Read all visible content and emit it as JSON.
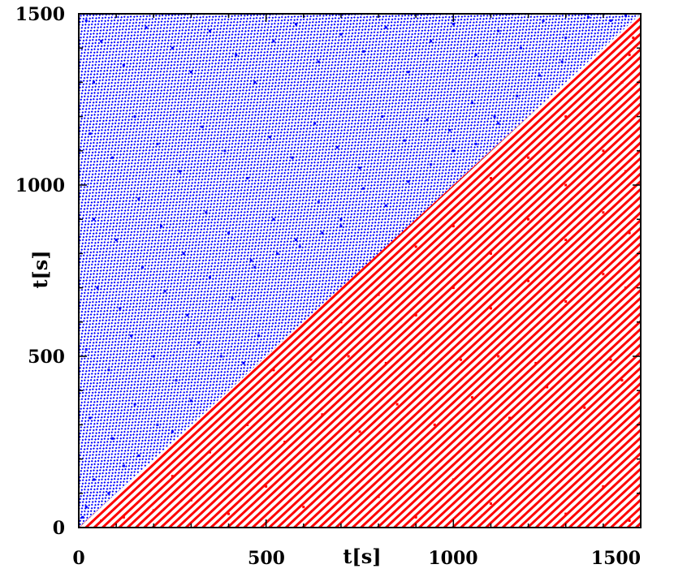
{
  "chart_data": {
    "type": "scatter",
    "title": "",
    "xlabel": "t[s]",
    "ylabel": "t[s]",
    "xlim": [
      0,
      1500
    ],
    "ylim": [
      0,
      1500
    ],
    "x_ticks": [
      "0",
      "500",
      "1000",
      "1500"
    ],
    "y_ticks": [
      "0",
      "500",
      "1000",
      "1500"
    ],
    "grid": false,
    "legend": "none",
    "series": [
      {
        "color": "#0000ff",
        "region": "upper-left triangle (y > x)",
        "points": [
          [
            20,
            1480
          ],
          [
            60,
            1420
          ],
          [
            40,
            1300
          ],
          [
            120,
            1350
          ],
          [
            180,
            1460
          ],
          [
            250,
            1400
          ],
          [
            300,
            1330
          ],
          [
            350,
            1450
          ],
          [
            420,
            1380
          ],
          [
            470,
            1300
          ],
          [
            520,
            1420
          ],
          [
            580,
            1470
          ],
          [
            640,
            1360
          ],
          [
            700,
            1440
          ],
          [
            760,
            1390
          ],
          [
            820,
            1460
          ],
          [
            880,
            1330
          ],
          [
            940,
            1420
          ],
          [
            1000,
            1470
          ],
          [
            1060,
            1380
          ],
          [
            1120,
            1450
          ],
          [
            1180,
            1400
          ],
          [
            1240,
            1480
          ],
          [
            1300,
            1430
          ],
          [
            1360,
            1490
          ],
          [
            1420,
            1480
          ],
          [
            1460,
            1495
          ],
          [
            30,
            1150
          ],
          [
            90,
            1080
          ],
          [
            150,
            1200
          ],
          [
            210,
            1120
          ],
          [
            270,
            1040
          ],
          [
            330,
            1170
          ],
          [
            390,
            1100
          ],
          [
            450,
            1020
          ],
          [
            510,
            1140
          ],
          [
            570,
            1080
          ],
          [
            630,
            1180
          ],
          [
            690,
            1110
          ],
          [
            750,
            1050
          ],
          [
            810,
            1200
          ],
          [
            870,
            1130
          ],
          [
            930,
            1190
          ],
          [
            990,
            1160
          ],
          [
            1050,
            1240
          ],
          [
            1110,
            1200
          ],
          [
            1170,
            1260
          ],
          [
            1230,
            1320
          ],
          [
            1290,
            1360
          ],
          [
            40,
            900
          ],
          [
            100,
            840
          ],
          [
            160,
            960
          ],
          [
            220,
            880
          ],
          [
            280,
            800
          ],
          [
            340,
            920
          ],
          [
            400,
            860
          ],
          [
            460,
            780
          ],
          [
            520,
            900
          ],
          [
            580,
            840
          ],
          [
            640,
            950
          ],
          [
            700,
            880
          ],
          [
            760,
            990
          ],
          [
            820,
            940
          ],
          [
            880,
            1010
          ],
          [
            940,
            1060
          ],
          [
            1000,
            1100
          ],
          [
            1060,
            1120
          ],
          [
            1120,
            1180
          ],
          [
            50,
            700
          ],
          [
            110,
            640
          ],
          [
            170,
            760
          ],
          [
            230,
            690
          ],
          [
            290,
            620
          ],
          [
            350,
            730
          ],
          [
            410,
            670
          ],
          [
            470,
            760
          ],
          [
            530,
            800
          ],
          [
            590,
            820
          ],
          [
            650,
            860
          ],
          [
            700,
            900
          ],
          [
            20,
            520
          ],
          [
            80,
            460
          ],
          [
            140,
            560
          ],
          [
            200,
            500
          ],
          [
            260,
            430
          ],
          [
            320,
            540
          ],
          [
            380,
            500
          ],
          [
            440,
            480
          ],
          [
            480,
            560
          ],
          [
            30,
            320
          ],
          [
            90,
            260
          ],
          [
            150,
            360
          ],
          [
            210,
            300
          ],
          [
            250,
            280
          ],
          [
            300,
            370
          ],
          [
            40,
            140
          ],
          [
            80,
            100
          ],
          [
            120,
            180
          ],
          [
            160,
            210
          ],
          [
            20,
            60
          ],
          [
            10,
            30
          ]
        ]
      },
      {
        "color": "#ff0000",
        "region": "lower-right triangle (y < x)",
        "points": [
          [
            60,
            20
          ],
          [
            120,
            30
          ],
          [
            200,
            50
          ],
          [
            300,
            80
          ],
          [
            400,
            40
          ],
          [
            500,
            120
          ],
          [
            600,
            60
          ],
          [
            700,
            150
          ],
          [
            800,
            90
          ],
          [
            900,
            30
          ],
          [
            1000,
            140
          ],
          [
            1100,
            70
          ],
          [
            1200,
            160
          ],
          [
            1300,
            40
          ],
          [
            1400,
            120
          ],
          [
            1470,
            20
          ],
          [
            250,
            150
          ],
          [
            350,
            220
          ],
          [
            450,
            300
          ],
          [
            550,
            250
          ],
          [
            650,
            330
          ],
          [
            750,
            280
          ],
          [
            850,
            360
          ],
          [
            950,
            300
          ],
          [
            1050,
            380
          ],
          [
            1150,
            320
          ],
          [
            1250,
            410
          ],
          [
            1350,
            350
          ],
          [
            1450,
            430
          ],
          [
            520,
            460
          ],
          [
            620,
            490
          ],
          [
            720,
            500
          ],
          [
            820,
            480
          ],
          [
            920,
            510
          ],
          [
            1020,
            490
          ],
          [
            1120,
            500
          ],
          [
            1220,
            480
          ],
          [
            1320,
            510
          ],
          [
            1420,
            490
          ],
          [
            700,
            600
          ],
          [
            800,
            680
          ],
          [
            900,
            620
          ],
          [
            1000,
            700
          ],
          [
            1100,
            640
          ],
          [
            1200,
            720
          ],
          [
            1300,
            660
          ],
          [
            1400,
            740
          ],
          [
            1460,
            700
          ],
          [
            900,
            820
          ],
          [
            1000,
            880
          ],
          [
            1100,
            800
          ],
          [
            1200,
            900
          ],
          [
            1300,
            840
          ],
          [
            1400,
            920
          ],
          [
            1470,
            860
          ],
          [
            1100,
            1020
          ],
          [
            1200,
            1080
          ],
          [
            1300,
            1000
          ],
          [
            1400,
            1100
          ],
          [
            1460,
            1040
          ],
          [
            1300,
            1200
          ],
          [
            1380,
            1250
          ],
          [
            1450,
            1300
          ],
          [
            1470,
            1380
          ],
          [
            1480,
            1430
          ]
        ]
      }
    ]
  }
}
